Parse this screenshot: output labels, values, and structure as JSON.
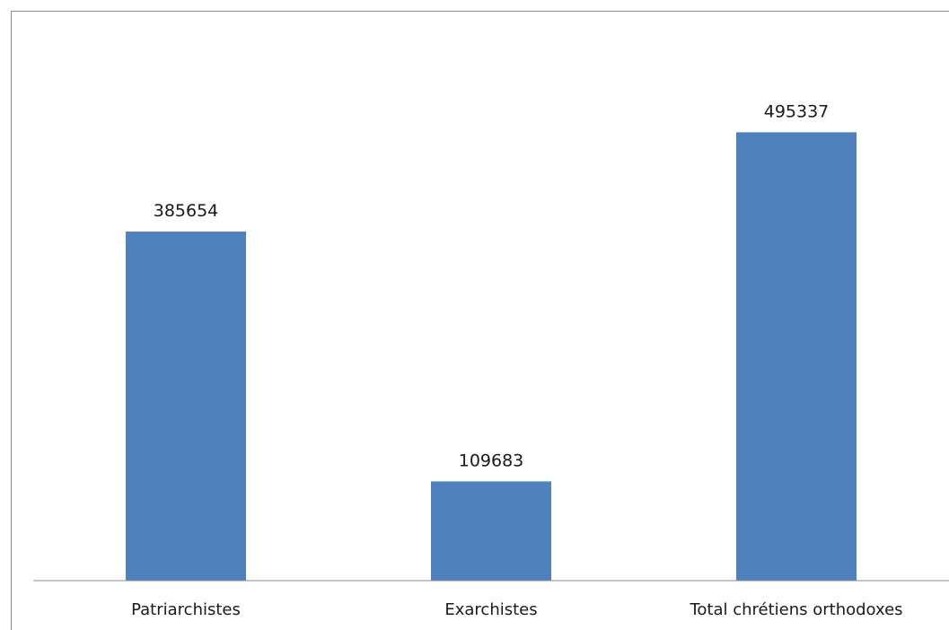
{
  "chart_data": {
    "type": "bar",
    "categories": [
      "Patriarchistes",
      "Exarchistes",
      "Total chrétiens orthodoxes"
    ],
    "values": [
      385654,
      109683,
      495337
    ],
    "data_labels": [
      "385654",
      "109683",
      "495337"
    ],
    "title": "",
    "xlabel": "",
    "ylabel": "",
    "ylim": [
      0,
      600000
    ],
    "grid": false,
    "legend": "none",
    "bar_color": "#4f81bd"
  }
}
